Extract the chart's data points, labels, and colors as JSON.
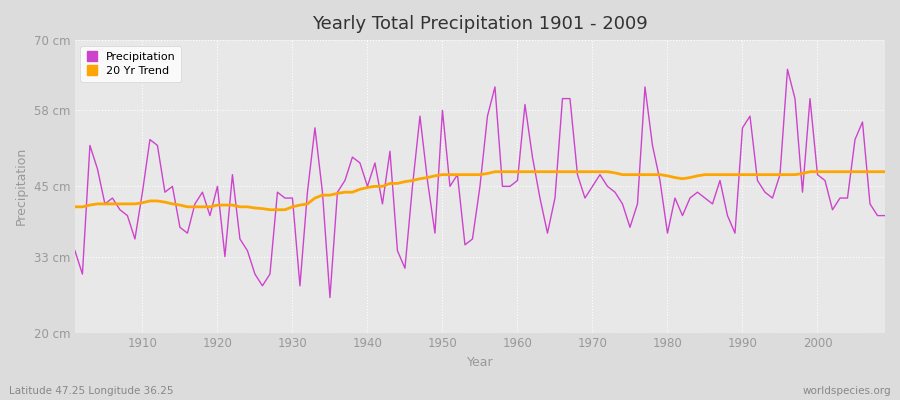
{
  "title": "Yearly Total Precipitation 1901 - 2009",
  "xlabel": "Year",
  "ylabel": "Precipitation",
  "lat_lon_label": "Latitude 47.25 Longitude 36.25",
  "source_label": "worldspecies.org",
  "ylim": [
    20,
    70
  ],
  "ytick_labels": [
    "20 cm",
    "33 cm",
    "45 cm",
    "58 cm",
    "70 cm"
  ],
  "ytick_values": [
    20,
    33,
    45,
    58,
    70
  ],
  "xlim": [
    1901,
    2009
  ],
  "line_color": "#CC44CC",
  "trend_color": "#FFA500",
  "fig_bg_color": "#DCDCDC",
  "plot_bg_color": "#E8E8E8",
  "grid_color": "#FFFFFF",
  "legend_bg": "#FFFFFF",
  "precipitation": [
    34,
    30,
    52,
    48,
    42,
    43,
    41,
    40,
    36,
    44,
    53,
    52,
    44,
    45,
    38,
    37,
    42,
    44,
    40,
    45,
    33,
    47,
    36,
    34,
    30,
    28,
    30,
    44,
    43,
    43,
    28,
    44,
    55,
    44,
    26,
    44,
    46,
    50,
    49,
    45,
    49,
    42,
    51,
    34,
    31,
    45,
    57,
    46,
    37,
    58,
    45,
    47,
    35,
    36,
    45,
    57,
    62,
    45,
    45,
    46,
    59,
    50,
    43,
    37,
    43,
    60,
    60,
    47,
    43,
    45,
    47,
    45,
    44,
    42,
    38,
    42,
    62,
    52,
    46,
    37,
    43,
    40,
    43,
    44,
    43,
    42,
    46,
    40,
    37,
    55,
    57,
    46,
    44,
    43,
    47,
    65,
    60,
    44,
    60,
    47,
    46,
    41,
    43,
    43,
    53,
    56,
    42,
    40,
    40
  ],
  "trend": [
    41.5,
    41.5,
    41.8,
    42.0,
    42.0,
    42.0,
    42.0,
    42.0,
    42.0,
    42.2,
    42.5,
    42.5,
    42.3,
    42.0,
    41.8,
    41.5,
    41.5,
    41.5,
    41.5,
    41.8,
    41.8,
    41.8,
    41.5,
    41.5,
    41.3,
    41.2,
    41.0,
    41.0,
    41.0,
    41.5,
    41.8,
    42.0,
    43.0,
    43.5,
    43.5,
    43.8,
    44.0,
    44.0,
    44.5,
    44.8,
    45.0,
    45.0,
    45.5,
    45.5,
    45.8,
    46.0,
    46.3,
    46.5,
    46.8,
    47.0,
    47.0,
    47.0,
    47.0,
    47.0,
    47.0,
    47.2,
    47.5,
    47.5,
    47.5,
    47.5,
    47.5,
    47.5,
    47.5,
    47.5,
    47.5,
    47.5,
    47.5,
    47.5,
    47.5,
    47.5,
    47.5,
    47.5,
    47.3,
    47.0,
    47.0,
    47.0,
    47.0,
    47.0,
    47.0,
    46.8,
    46.5,
    46.3,
    46.5,
    46.8,
    47.0,
    47.0,
    47.0,
    47.0,
    47.0,
    47.0,
    47.0,
    47.0,
    47.0,
    47.0,
    47.0,
    47.0,
    47.0,
    47.2,
    47.5,
    47.5,
    47.5,
    47.5,
    47.5,
    47.5,
    47.5,
    47.5,
    47.5,
    47.5,
    47.5
  ],
  "start_year": 1901
}
